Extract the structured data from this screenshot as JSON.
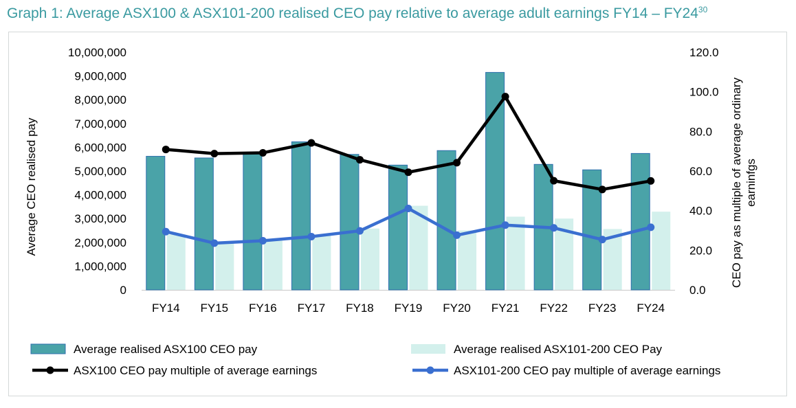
{
  "title": "Graph 1: Average ASX100 & ASX101-200 realised CEO pay relative to average adult earnings FY14 – FY24",
  "title_superscript": "30",
  "chart_data": {
    "type": "bar",
    "categories": [
      "FY14",
      "FY15",
      "FY16",
      "FY17",
      "FY18",
      "FY19",
      "FY20",
      "FY21",
      "FY22",
      "FY23",
      "FY24"
    ],
    "ylabel": "Average CEO realised pay",
    "y2label_line1": "CEO pay as multiple of average ordinary",
    "y2label_line2": "earninfgs",
    "ylim": [
      0,
      10000000
    ],
    "y2lim": [
      0,
      120
    ],
    "y_ticks": [
      0,
      1000000,
      2000000,
      3000000,
      4000000,
      5000000,
      6000000,
      7000000,
      8000000,
      9000000,
      10000000
    ],
    "y_tick_labels": [
      "0",
      "1,000,000",
      "2,000,000",
      "3,000,000",
      "4,000,000",
      "5,000,000",
      "6,000,000",
      "7,000,000",
      "8,000,000",
      "9,000,000",
      "10,000,000"
    ],
    "y2_ticks": [
      0,
      20,
      40,
      60,
      80,
      100,
      120
    ],
    "y2_tick_labels": [
      "0.0",
      "20.0",
      "40.0",
      "60.0",
      "80.0",
      "100.0",
      "120.0"
    ],
    "grid": false,
    "legend_position": "bottom",
    "series": [
      {
        "name": "Average realised ASX100 CEO pay",
        "kind": "bar",
        "axis": "left",
        "color": "#4aa3a8",
        "values": [
          5620000,
          5550000,
          5750000,
          6230000,
          5700000,
          5250000,
          5860000,
          9150000,
          5280000,
          5050000,
          5740000
        ]
      },
      {
        "name": "Average realised ASX101-200 CEO Pay",
        "kind": "bar",
        "axis": "left",
        "color": "#d3f0ec",
        "values": [
          2330000,
          1950000,
          2070000,
          2270000,
          2580000,
          3540000,
          2500000,
          3080000,
          3000000,
          2560000,
          3290000
        ]
      },
      {
        "name": "ASX100 CEO pay multiple of average earnings",
        "kind": "line",
        "axis": "right",
        "color": "#000000",
        "values": [
          70.9,
          68.8,
          69.2,
          74.2,
          65.7,
          59.4,
          64.2,
          97.6,
          55.1,
          50.7,
          55.0
        ]
      },
      {
        "name": "ASX101-200 CEO pay multiple of average earnings",
        "kind": "line",
        "axis": "right",
        "color": "#3a6fd0",
        "values": [
          29.4,
          23.6,
          24.8,
          26.9,
          29.8,
          41.1,
          27.6,
          32.7,
          31.3,
          25.4,
          31.6
        ]
      }
    ]
  }
}
